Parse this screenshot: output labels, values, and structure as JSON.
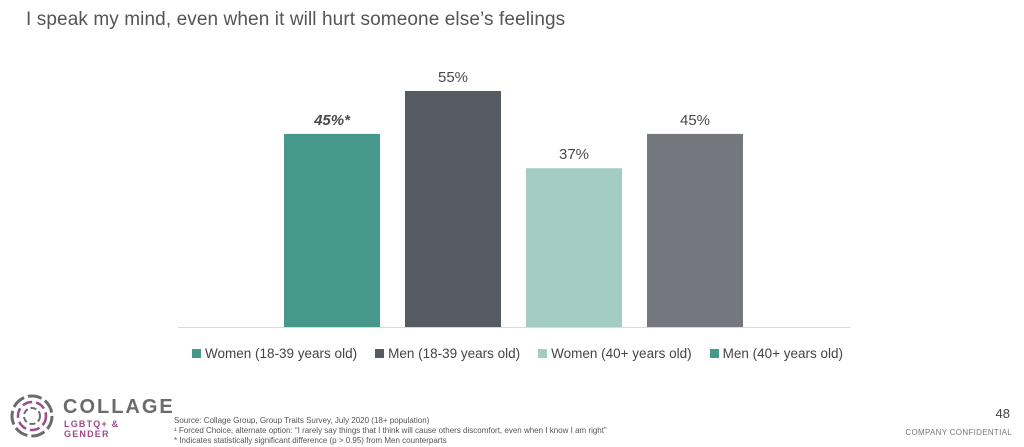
{
  "title": "I speak my mind, even when it will hurt someone else’s feelings",
  "chart_data": {
    "type": "bar",
    "categories": [
      "Women (18-39 years old)",
      "Men (18-39 years old)",
      "Women (40+ years old)",
      "Men (40+ years old)"
    ],
    "values": [
      45,
      55,
      37,
      45
    ],
    "data_labels": [
      "45%*",
      "55%",
      "37%",
      "45%"
    ],
    "significant": [
      true,
      false,
      false,
      false
    ],
    "colors": [
      "#46998a",
      "#565a62",
      "#a3cdc4",
      "#75777f"
    ],
    "legend_colors": [
      "#46998a",
      "#565a62",
      "#a3cdc4",
      "#46998a"
    ],
    "ylim": [
      0,
      55
    ],
    "legend_placement": "bottom",
    "grid": false
  },
  "logo": {
    "word": "COLLAGE",
    "sub": "LGBTQ+ & GENDER",
    "colors": [
      "#a04a8c",
      "#6b6b6b"
    ]
  },
  "footnotes": {
    "source": "Source: Collage Group, Group Traits Survey, July 2020 (18+ population)",
    "note1": "¹ Forced Choice, alternate option: “I rarely say things that I think will cause others discomfort, even when I know I am right”",
    "note2": "* Indicates statistically significant difference (p > 0.95) from Men counterparts"
  },
  "page_number": "48",
  "confidential": "COMPANY CONFIDENTIAL"
}
